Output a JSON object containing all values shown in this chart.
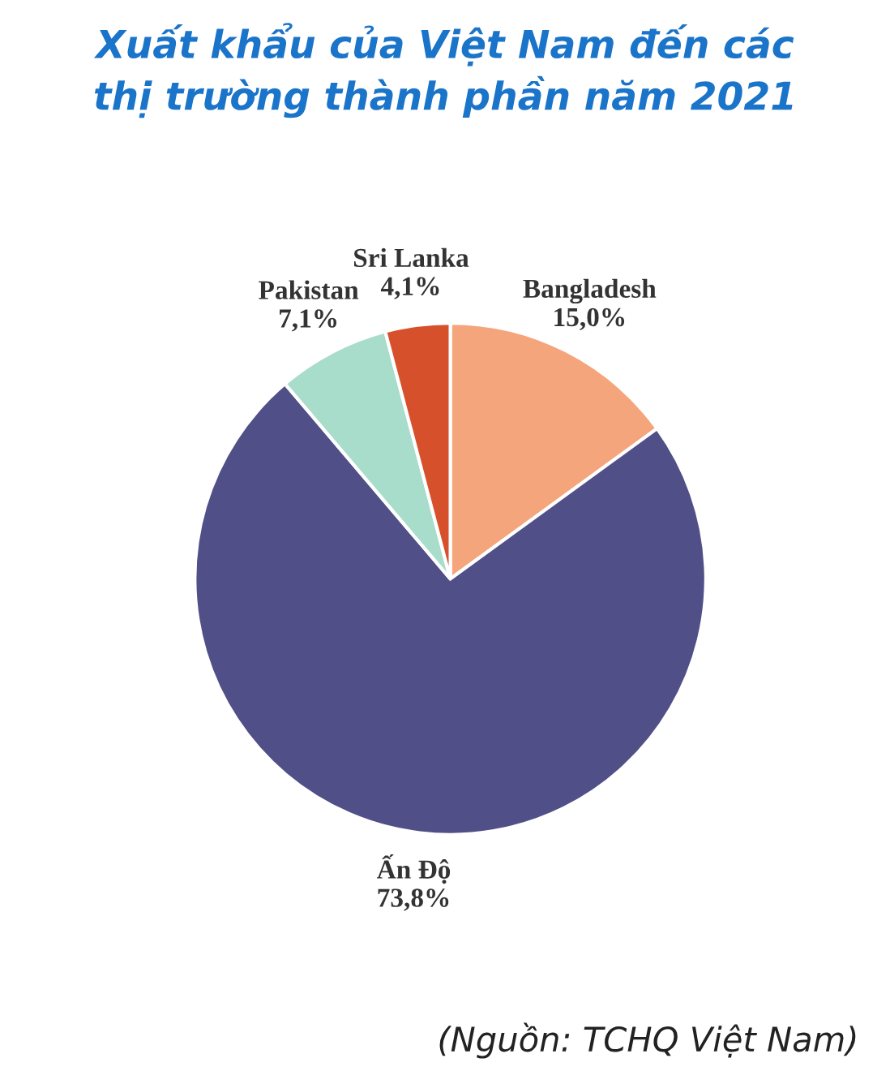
{
  "chart_data": {
    "type": "pie",
    "title": "Xuất khẩu của Việt Nam đến các\nthị trường thành phần năm 2021",
    "categories": [
      "Bangladesh",
      "Ấn Độ",
      "Pakistan",
      "Sri Lanka"
    ],
    "values": [
      15.0,
      73.8,
      7.1,
      4.1
    ],
    "value_labels": [
      "15,0%",
      "73,8%",
      "7,1%",
      "4,1%"
    ],
    "colors": [
      "#f5a57c",
      "#514f87",
      "#a8dccb",
      "#d6502c"
    ],
    "annotations": [
      "(Nguồn: TCHQ Việt Nam)"
    ]
  }
}
